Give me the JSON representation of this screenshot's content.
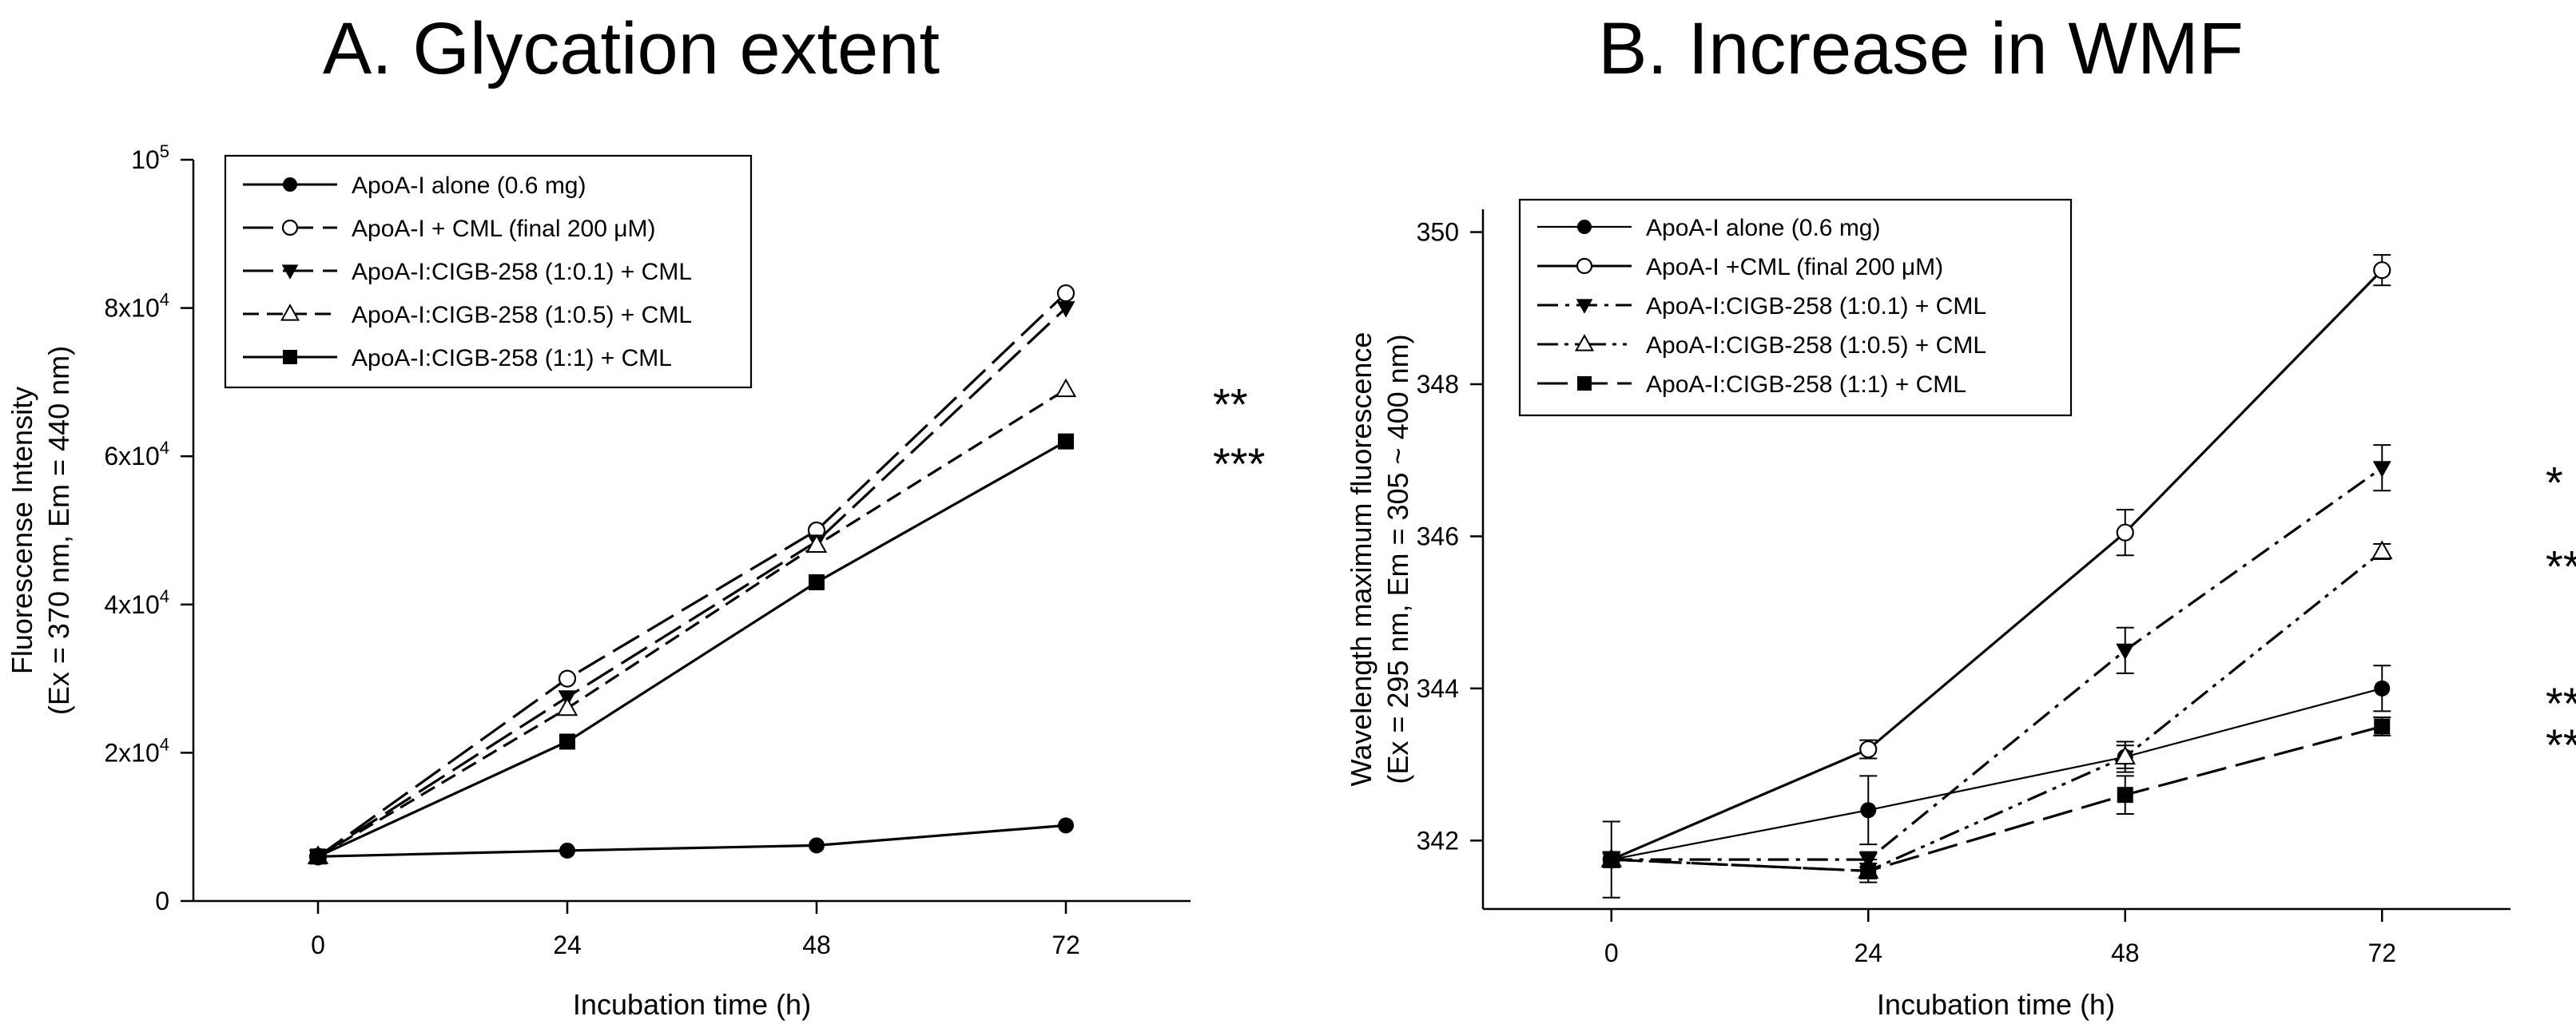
{
  "chart_data": [
    {
      "type": "line",
      "title": "A.  Glycation extent",
      "xlabel": "Incubation time (h)",
      "ylabel": "Fluorescense Intensity",
      "ylabel2": "(Ex = 370 nm, Em = 440 nm)",
      "x": [
        0,
        24,
        48,
        72
      ],
      "xlim": [
        -12,
        84
      ],
      "ylim": [
        0,
        100000
      ],
      "xticks": [
        0,
        24,
        48,
        72
      ],
      "yticks": [
        {
          "value": 0,
          "mantissa": "0",
          "exp": ""
        },
        {
          "value": 20000,
          "mantissa": "2x10",
          "exp": "4"
        },
        {
          "value": 40000,
          "mantissa": "4x10",
          "exp": "4"
        },
        {
          "value": 60000,
          "mantissa": "6x10",
          "exp": "4"
        },
        {
          "value": 80000,
          "mantissa": "8x10",
          "exp": "4"
        },
        {
          "value": 100000,
          "mantissa": "10",
          "exp": "5"
        }
      ],
      "legend_position": "top-left",
      "series": [
        {
          "name": "ApoA-I alone (0.6 mg)",
          "values": [
            6000,
            6800,
            7500,
            10200
          ],
          "marker": "filled-circle",
          "dash": "solid",
          "color": "#000000"
        },
        {
          "name": "ApoA-I  + CML (final 200 μM)",
          "values": [
            6000,
            30000,
            50000,
            82000
          ],
          "marker": "open-circle",
          "dash": "long-dash",
          "color": "#000000"
        },
        {
          "name": "ApoA-I:CIGB-258 (1:0.1) + CML",
          "values": [
            6000,
            27500,
            48500,
            80000
          ],
          "marker": "filled-triangle-down",
          "dash": "long-dash",
          "color": "#000000"
        },
        {
          "name": "ApoA-I:CIGB-258 (1:0.5) + CML",
          "values": [
            6000,
            26000,
            48000,
            69000
          ],
          "marker": "open-triangle-up",
          "dash": "dash",
          "color": "#000000"
        },
        {
          "name": "ApoA-I:CIGB-258 (1:1) + CML",
          "values": [
            6000,
            21500,
            43000,
            62000
          ],
          "marker": "filled-square",
          "dash": "solid",
          "color": "#000000"
        }
      ],
      "annotations": [
        {
          "text": "**",
          "x": 72,
          "y": 69000
        },
        {
          "text": "***",
          "x": 72,
          "y": 61000
        }
      ]
    },
    {
      "type": "line",
      "title": "B.  Increase in WMF",
      "xlabel": "Incubation time (h)",
      "ylabel": "Wavelength maximum fluorescence",
      "ylabel2": "(Ex = 295 nm, Em = 305 ~ 400 nm)",
      "x": [
        0,
        24,
        48,
        72
      ],
      "xlim": [
        -12,
        84
      ],
      "ylim": [
        341.1,
        350.3
      ],
      "xticks": [
        0,
        24,
        48,
        72
      ],
      "yticks": [
        {
          "value": 342,
          "mantissa": "342",
          "exp": ""
        },
        {
          "value": 344,
          "mantissa": "344",
          "exp": ""
        },
        {
          "value": 346,
          "mantissa": "346",
          "exp": ""
        },
        {
          "value": 348,
          "mantissa": "348",
          "exp": ""
        },
        {
          "value": 350,
          "mantissa": "350",
          "exp": ""
        }
      ],
      "legend_position": "top-left",
      "series": [
        {
          "name": "ApoA-I alone (0.6 mg)",
          "values": [
            341.75,
            342.4,
            343.1,
            344.0
          ],
          "errors": [
            0.5,
            0.45,
            0.15,
            0.3
          ],
          "marker": "filled-circle",
          "dash": "solid-thin",
          "color": "#000000"
        },
        {
          "name": "ApoA-I +CML (final 200 μM)",
          "values": [
            341.75,
            343.2,
            346.05,
            349.5
          ],
          "errors": [
            0.1,
            0.12,
            0.3,
            0.2
          ],
          "marker": "open-circle",
          "dash": "solid",
          "color": "#000000"
        },
        {
          "name": "ApoA-I:CIGB-258 (1:0.1) + CML",
          "values": [
            341.75,
            341.75,
            344.5,
            346.9
          ],
          "errors": [
            0.1,
            0.1,
            0.3,
            0.3
          ],
          "marker": "filled-triangle-down",
          "dash": "dash-dot",
          "color": "#000000"
        },
        {
          "name": "ApoA-I:CIGB-258 (1:0.5) + CML",
          "values": [
            341.75,
            341.6,
            343.1,
            345.8
          ],
          "errors": [
            0.1,
            0.1,
            0.2,
            0.1
          ],
          "marker": "open-triangle-up",
          "dash": "dash-dot-dot",
          "color": "#000000"
        },
        {
          "name": "ApoA-I:CIGB-258 (1:1) + CML",
          "values": [
            341.75,
            341.6,
            342.6,
            343.5
          ],
          "errors": [
            0.1,
            0.15,
            0.25,
            0.12
          ],
          "marker": "filled-square",
          "dash": "long-dash",
          "color": "#000000"
        }
      ],
      "annotations": [
        {
          "text": "*",
          "x": 72,
          "y": 346.9
        },
        {
          "text": "**",
          "x": 72,
          "y": 345.8
        },
        {
          "text": "***",
          "x": 72,
          "y": 344.0
        },
        {
          "text": "***",
          "x": 72,
          "y": 343.45
        }
      ]
    }
  ]
}
